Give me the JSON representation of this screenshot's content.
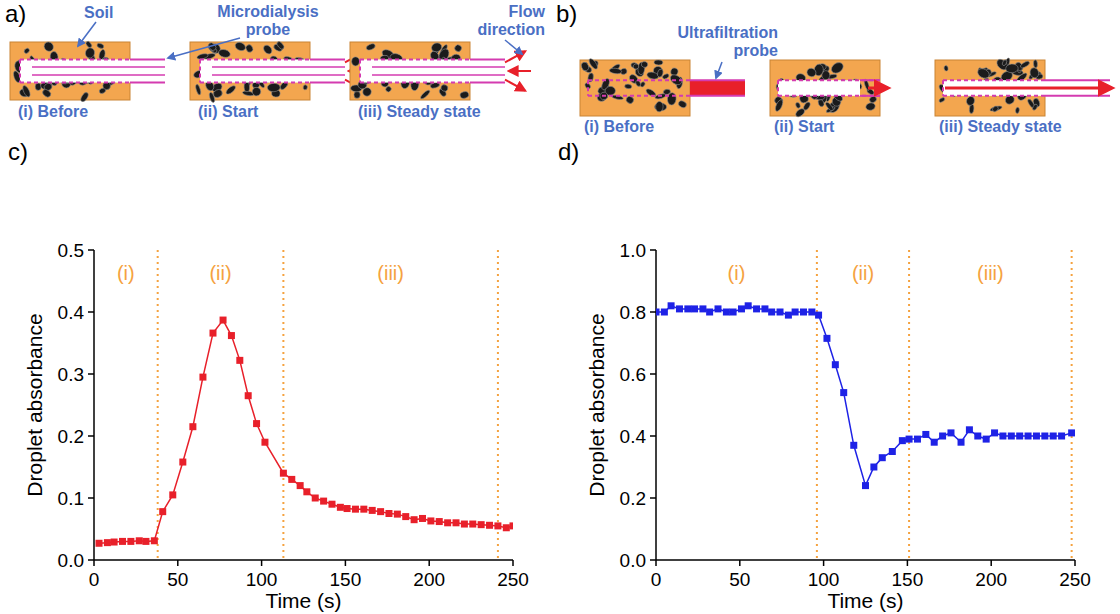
{
  "diagrams": [
    {
      "panel_label": "a)",
      "labels": {
        "soil": "Soil",
        "probe": "Microdialysis probe",
        "flow": "Flow direction"
      },
      "stages": [
        "(i) Before",
        "(ii) Start",
        "(iii) Steady state"
      ]
    },
    {
      "panel_label": "b)",
      "labels": {
        "probe": "Ultrafiltration probe"
      },
      "stages": [
        "(i) Before",
        "(ii) Start",
        "(iii) Steady state"
      ]
    }
  ],
  "chart_data": [
    {
      "type": "line",
      "panel_label": "c)",
      "x_label": "Time (s)",
      "y_label": "Droplet absorbance",
      "xlim": [
        0,
        250
      ],
      "ylim": [
        0,
        0.5
      ],
      "xticks": [
        0,
        50,
        100,
        150,
        200,
        250
      ],
      "yticks": [
        {
          "value": 0,
          "label": "0.0"
        },
        0.1,
        0.2,
        0.3,
        0.4,
        0.5
      ],
      "x": [
        3,
        8,
        12,
        17,
        22,
        27,
        31,
        36,
        41,
        47,
        53,
        59,
        65,
        71,
        77,
        82,
        87,
        92,
        97,
        102,
        113,
        118,
        123,
        127,
        132,
        137,
        142,
        147,
        151,
        156,
        161,
        166,
        171,
        176,
        181,
        186,
        191,
        196,
        201,
        206,
        211,
        216,
        221,
        226,
        231,
        236,
        241,
        246,
        250
      ],
      "series": [
        {
          "color": "#e8202a",
          "marker": "square",
          "line_style": "solid",
          "values": [
            0.027,
            0.028,
            0.029,
            0.03,
            0.03,
            0.031,
            0.03,
            0.031,
            0.078,
            0.105,
            0.158,
            0.215,
            0.295,
            0.366,
            0.387,
            0.362,
            0.322,
            0.265,
            0.22,
            0.19,
            0.14,
            0.13,
            0.12,
            0.11,
            0.1,
            0.095,
            0.09,
            0.085,
            0.083,
            0.082,
            0.082,
            0.08,
            0.078,
            0.075,
            0.074,
            0.07,
            0.065,
            0.067,
            0.063,
            0.062,
            0.06,
            0.06,
            0.058,
            0.058,
            0.057,
            0.056,
            0.055,
            0.052,
            0.055
          ]
        }
      ],
      "phase_lines": [
        38,
        113,
        241
      ],
      "phase_labels": [
        "(i)",
        "(ii)",
        "(iii)"
      ]
    },
    {
      "type": "line",
      "panel_label": "d)",
      "x_label": "Time (s)",
      "y_label": "Droplet absorbance",
      "xlim": [
        0,
        250
      ],
      "ylim": [
        0,
        1
      ],
      "xticks": [
        0,
        50,
        100,
        150,
        200,
        250
      ],
      "yticks": [
        {
          "value": 0,
          "label": "0.0"
        },
        0.2,
        0.4,
        0.6,
        0.8,
        {
          "value": 1,
          "label": "1.0"
        }
      ],
      "x": [
        0,
        5,
        9,
        14,
        19,
        23,
        28,
        32,
        37,
        42,
        46,
        51,
        55,
        60,
        65,
        69,
        74,
        79,
        83,
        88,
        93,
        97,
        102,
        107,
        112,
        118,
        125,
        130,
        135,
        141,
        147,
        151,
        156,
        161,
        166,
        171,
        176,
        182,
        187,
        192,
        197,
        202,
        207,
        212,
        217,
        222,
        227,
        232,
        237,
        242,
        248
      ],
      "series": [
        {
          "color": "#1e22e6",
          "marker": "square",
          "line_style": "solid",
          "values": [
            0.8,
            0.8,
            0.82,
            0.81,
            0.81,
            0.81,
            0.81,
            0.8,
            0.81,
            0.8,
            0.8,
            0.81,
            0.82,
            0.81,
            0.81,
            0.8,
            0.8,
            0.79,
            0.8,
            0.8,
            0.8,
            0.79,
            0.715,
            0.63,
            0.54,
            0.37,
            0.24,
            0.3,
            0.33,
            0.35,
            0.385,
            0.39,
            0.39,
            0.405,
            0.38,
            0.4,
            0.41,
            0.38,
            0.42,
            0.4,
            0.39,
            0.41,
            0.4,
            0.4,
            0.4,
            0.4,
            0.4,
            0.4,
            0.4,
            0.4,
            0.41
          ]
        }
      ],
      "phase_lines": [
        96,
        151,
        248
      ],
      "phase_labels": [
        "(i)",
        "(ii)",
        "(iii)"
      ]
    }
  ]
}
